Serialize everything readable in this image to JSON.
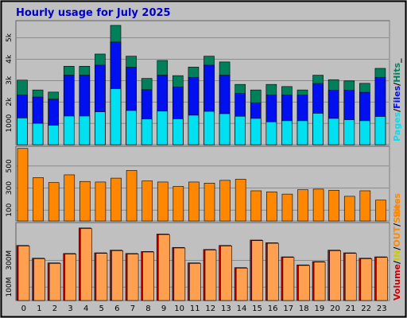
{
  "colors": {
    "background": "#c0c0c0",
    "panel": "#c0c0c0",
    "hits": "#00805a",
    "files": "#0010ee",
    "pages": "#00e0f0",
    "sites": "#ff8800",
    "volume": "#cc0000",
    "in": "#ffa050",
    "out": "#e0a050",
    "title": "#0000cc"
  },
  "chart_data": [
    {
      "type": "bar",
      "title": "Hourly usage for July 2025",
      "categories": [
        "0",
        "1",
        "2",
        "3",
        "4",
        "5",
        "6",
        "7",
        "8",
        "9",
        "10",
        "11",
        "12",
        "13",
        "14",
        "15",
        "16",
        "17",
        "18",
        "19",
        "20",
        "21",
        "22",
        "23"
      ],
      "y_ticks": [
        "1000",
        "2k",
        "3k",
        "4k",
        "5k"
      ],
      "ylim": [
        0,
        5800
      ],
      "legend": [
        "Pages",
        "/",
        "Files",
        "/",
        "Hits",
        "_"
      ],
      "series": [
        {
          "name": "Hits",
          "values": [
            3020,
            2560,
            2460,
            3670,
            3670,
            4240,
            5580,
            4140,
            3100,
            3940,
            3230,
            3630,
            4140,
            3870,
            2820,
            2560,
            2820,
            2720,
            2560,
            3250,
            3040,
            2980,
            2870,
            3570
          ]
        },
        {
          "name": "Files",
          "values": [
            2330,
            2230,
            2130,
            3250,
            3250,
            3720,
            4800,
            3620,
            2570,
            3250,
            2700,
            3150,
            3720,
            3250,
            2400,
            1960,
            2330,
            2330,
            2330,
            2860,
            2550,
            2550,
            2450,
            3150
          ]
        },
        {
          "name": "Pages",
          "values": [
            1250,
            1000,
            910,
            1340,
            1340,
            1540,
            2620,
            1600,
            1200,
            1570,
            1210,
            1380,
            1560,
            1450,
            1330,
            1230,
            1070,
            1120,
            1120,
            1470,
            1230,
            1170,
            1120,
            1320
          ]
        }
      ]
    },
    {
      "type": "bar",
      "categories": [
        "0",
        "1",
        "2",
        "3",
        "4",
        "5",
        "6",
        "7",
        "8",
        "9",
        "10",
        "11",
        "12",
        "13",
        "14",
        "15",
        "16",
        "17",
        "18",
        "19",
        "20",
        "21",
        "22",
        "23"
      ],
      "y_ticks": [
        "100",
        "300",
        "500"
      ],
      "ylim": [
        0,
        680
      ],
      "legend": [
        "Sites"
      ],
      "series": [
        {
          "name": "Sites",
          "values": [
            660,
            395,
            350,
            420,
            360,
            355,
            390,
            460,
            365,
            355,
            315,
            355,
            345,
            370,
            380,
            275,
            265,
            245,
            285,
            290,
            280,
            225,
            275,
            190
          ]
        }
      ]
    },
    {
      "type": "bar",
      "categories": [
        "0",
        "1",
        "2",
        "3",
        "4",
        "5",
        "6",
        "7",
        "8",
        "9",
        "10",
        "11",
        "12",
        "13",
        "14",
        "15",
        "16",
        "17",
        "18",
        "19",
        "20",
        "21",
        "22",
        "23"
      ],
      "y_ticks": [
        "100M",
        "300M"
      ],
      "ylim": [
        0,
        580
      ],
      "legend": [
        "Volume",
        "/",
        "IN",
        "/",
        "OUT",
        "/",
        "Sites"
      ],
      "series": [
        {
          "name": "Volume",
          "values": [
            410,
            315,
            280,
            350,
            540,
            355,
            375,
            350,
            365,
            495,
            395,
            280,
            380,
            410,
            245,
            450,
            430,
            325,
            265,
            290,
            375,
            355,
            315,
            325
          ]
        }
      ]
    }
  ]
}
